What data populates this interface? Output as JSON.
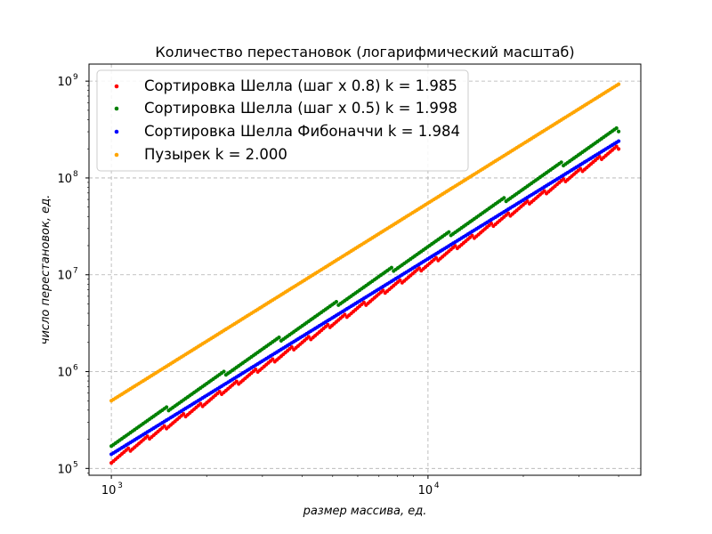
{
  "chart_data": {
    "type": "scatter",
    "title": "Количество перестановок (логарифмический масштаб)",
    "xlabel": "размер массива, ед.",
    "ylabel": "число перестановок, ед.",
    "xscale": "log",
    "yscale": "log",
    "xlim": [
      850,
      47000
    ],
    "ylim": [
      85000,
      1500000000
    ],
    "grid": true,
    "legend_position": "top-left",
    "x_ticks": [
      {
        "base": "10",
        "exp": "3",
        "value": 1000
      },
      {
        "base": "10",
        "exp": "4",
        "value": 10000
      }
    ],
    "y_ticks": [
      {
        "base": "10",
        "exp": "5",
        "value": 100000
      },
      {
        "base": "10",
        "exp": "6",
        "value": 1000000
      },
      {
        "base": "10",
        "exp": "7",
        "value": 10000000
      },
      {
        "base": "10",
        "exp": "8",
        "value": 100000000
      },
      {
        "base": "10",
        "exp": "9",
        "value": 1000000000
      }
    ],
    "x_range": [
      1000,
      40000
    ],
    "series": [
      {
        "name": "Сортировка Шелла (шаг x 0.8) k = 1.985",
        "color": "#ff0000",
        "y_at_start": 120000,
        "y_at_end": 210000000,
        "k": 1.985,
        "pattern": "sawtooth"
      },
      {
        "name": "Сортировка Шелла (шаг x 0.5) k = 1.998",
        "color": "#008000",
        "y_at_start": 180000,
        "y_at_end": 320000000,
        "k": 1.998,
        "pattern": "steps"
      },
      {
        "name": "Сортировка Шелла Фибоначчи k = 1.984",
        "color": "#0000ff",
        "y_at_start": 140000,
        "y_at_end": 240000000,
        "k": 1.984,
        "pattern": "smooth"
      },
      {
        "name": "Пузырек k = 2.000",
        "color": "#ffa500",
        "y_at_start": 500000,
        "y_at_end": 930000000,
        "k": 2.0,
        "pattern": "smooth"
      }
    ]
  }
}
